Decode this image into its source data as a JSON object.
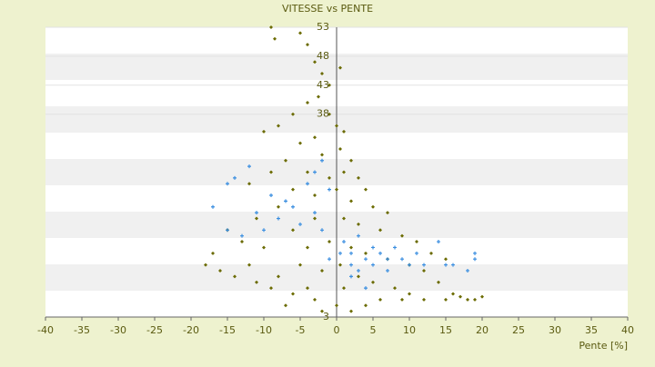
{
  "chart_data": {
    "type": "scatter",
    "title": "VITESSE vs PENTE",
    "x_label": "Pente [%]",
    "xlim": [
      -40,
      40
    ],
    "xticks": [
      -40,
      -35,
      -30,
      -25,
      -20,
      -15,
      -10,
      -5,
      0,
      5,
      10,
      15,
      20,
      25,
      30,
      35,
      40
    ],
    "ylim": [
      3,
      53
    ],
    "yticks": [
      3,
      38,
      43,
      48,
      53
    ],
    "grid": true,
    "series": [
      {
        "color": "#6b6b00",
        "marker": "diamond",
        "x": [
          -9,
          -8.5,
          -5,
          -4,
          -3,
          -2,
          0.5,
          -1,
          -2.5,
          -4,
          -6,
          -8,
          -10,
          -1,
          0,
          1,
          -3,
          -5,
          -2,
          0.5,
          2,
          -7,
          -9,
          -12,
          -4,
          -1,
          1,
          3,
          4,
          -6,
          -3,
          0,
          2,
          5,
          7,
          -8,
          -11,
          -15,
          -13,
          -17,
          -18,
          -10,
          -6,
          -3,
          1,
          3,
          6,
          9,
          11,
          13,
          15,
          -4,
          -1,
          2,
          4,
          7,
          10,
          12,
          14,
          16,
          18,
          19,
          -12,
          -14,
          -8,
          -5,
          -2,
          0.5,
          3,
          5,
          8,
          10,
          -9,
          -6,
          -3,
          0,
          2,
          4,
          6,
          9,
          12,
          15,
          -2,
          -4,
          1,
          -7,
          -11,
          -16,
          17,
          20
        ],
        "y": [
          53,
          51,
          52,
          50,
          47,
          45,
          46,
          43,
          41,
          40,
          38,
          36,
          35,
          38,
          36,
          35,
          34,
          33,
          31,
          32,
          30,
          30,
          28,
          26,
          28,
          27,
          28,
          27,
          25,
          25,
          24,
          25,
          23,
          22,
          21,
          22,
          20,
          18,
          16,
          14,
          12,
          15,
          18,
          20,
          20,
          19,
          18,
          17,
          16,
          14,
          13,
          15,
          16,
          15,
          14,
          13,
          12,
          11,
          9,
          7,
          6,
          6,
          12,
          10,
          10,
          12,
          11,
          12,
          10,
          9,
          8,
          7,
          8,
          7,
          6,
          5,
          4,
          5,
          6,
          6,
          6,
          6,
          4,
          8,
          8,
          5,
          9,
          11,
          6.5,
          6.5
        ]
      },
      {
        "color": "#3a8ee0",
        "marker": "plus",
        "x": [
          -14,
          -15,
          -12,
          -17,
          -9,
          -6,
          -4,
          -3,
          -2,
          -1,
          -8,
          -10,
          -13,
          -15,
          -5,
          -3,
          -2,
          1,
          2,
          3,
          4,
          5,
          6,
          7,
          8,
          9,
          10,
          11,
          12,
          14,
          15,
          18,
          19,
          19,
          2,
          3,
          5,
          7,
          0.5,
          -1,
          4,
          2,
          -7,
          -11,
          16
        ],
        "y": [
          27,
          26,
          29,
          22,
          24,
          22,
          26,
          28,
          30,
          25,
          20,
          18,
          17,
          18,
          19,
          21,
          18,
          16,
          14,
          17,
          13,
          15,
          14,
          13,
          15,
          13,
          12,
          14,
          12,
          16,
          12,
          11,
          13,
          14,
          12,
          11,
          12,
          11,
          14,
          13,
          8,
          10,
          23,
          21,
          12
        ]
      }
    ]
  }
}
